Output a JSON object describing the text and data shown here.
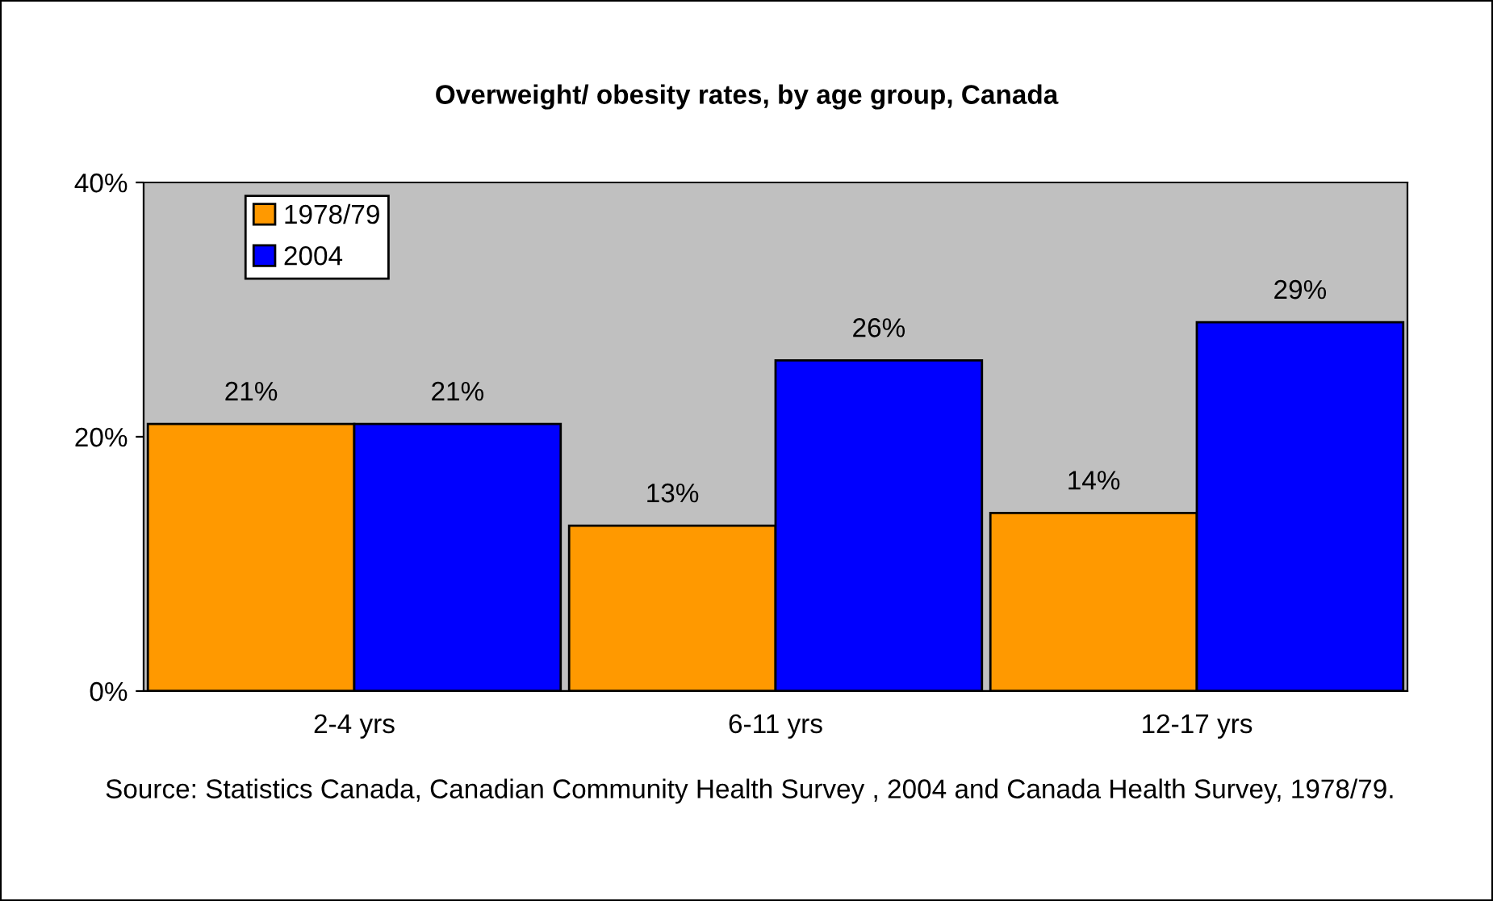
{
  "chart_data": {
    "type": "bar",
    "title": "Overweight/ obesity rates, by age group, Canada",
    "categories": [
      "2-4 yrs",
      "6-11 yrs",
      "12-17 yrs"
    ],
    "series": [
      {
        "name": "1978/79",
        "color": "#ff9900",
        "values": [
          21,
          13,
          14
        ],
        "value_labels": [
          "21%",
          "13%",
          "14%"
        ]
      },
      {
        "name": "2004",
        "color": "#0000ff",
        "values": [
          21,
          26,
          29
        ],
        "value_labels": [
          "21%",
          "26%",
          "29%"
        ]
      }
    ],
    "ylim": [
      0,
      40
    ],
    "yticks": [
      {
        "value": 0,
        "label": "0%"
      },
      {
        "value": 20,
        "label": "20%"
      },
      {
        "value": 40,
        "label": "40%"
      }
    ],
    "grid": false,
    "legend": "top left",
    "annotations": [
      "Source: Statistics Canada, Canadian Community Health Survey , 2004 and Canada Health Survey, 1978/79."
    ]
  }
}
